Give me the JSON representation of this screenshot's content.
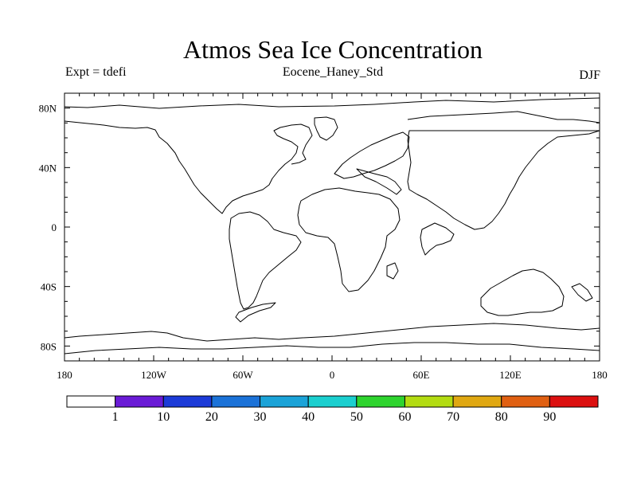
{
  "header": {
    "title": "Atmos Sea Ice Concentration",
    "experiment": "Expt = tdefi",
    "run_name": "Eocene_Haney_Std",
    "season": "DJF"
  },
  "map": {
    "projection": "cylindrical-equidistant",
    "lon_range": [
      -180,
      180
    ],
    "lat_range": [
      -90,
      90
    ],
    "lat_tick_labels": [
      "80N",
      "40N",
      "0",
      "40S",
      "80S"
    ],
    "lat_tick_values": [
      80,
      40,
      0,
      -40,
      -80
    ],
    "lon_tick_labels": [
      "180",
      "120W",
      "60W",
      "0",
      "60E",
      "120E",
      "180"
    ],
    "lon_tick_values": [
      -180,
      -120,
      -60,
      0,
      60,
      120,
      180
    ],
    "coastline_color": "#000000",
    "data_shown": "none"
  },
  "colorbar": {
    "bin_colors": [
      "#ffffff",
      "#6a1bd6",
      "#1c3bd8",
      "#1b72d8",
      "#1ba3d8",
      "#1bcfcf",
      "#2ed42e",
      "#b3dc12",
      "#e0a812",
      "#e06012",
      "#dc1010"
    ],
    "labels": [
      "1",
      "10",
      "20",
      "30",
      "40",
      "50",
      "60",
      "70",
      "80",
      "90"
    ]
  }
}
